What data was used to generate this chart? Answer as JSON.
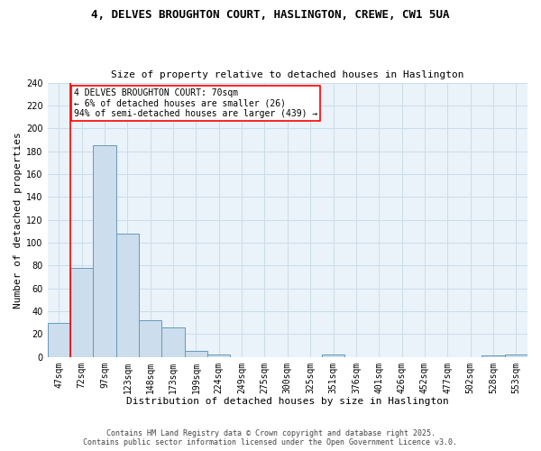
{
  "title1": "4, DELVES BROUGHTON COURT, HASLINGTON, CREWE, CW1 5UA",
  "title2": "Size of property relative to detached houses in Haslington",
  "xlabel": "Distribution of detached houses by size in Haslington",
  "ylabel": "Number of detached properties",
  "bar_color": "#ccdded",
  "bar_edge_color": "#6699bb",
  "categories": [
    "47sqm",
    "72sqm",
    "97sqm",
    "123sqm",
    "148sqm",
    "173sqm",
    "199sqm",
    "224sqm",
    "249sqm",
    "275sqm",
    "300sqm",
    "325sqm",
    "351sqm",
    "376sqm",
    "401sqm",
    "426sqm",
    "452sqm",
    "477sqm",
    "502sqm",
    "528sqm",
    "553sqm"
  ],
  "values": [
    30,
    78,
    185,
    108,
    32,
    26,
    5,
    2,
    0,
    0,
    0,
    0,
    2,
    0,
    0,
    0,
    0,
    0,
    0,
    1,
    2
  ],
  "redline_x": 0.5,
  "annotation_text": "4 DELVES BROUGHTON COURT: 70sqm\n← 6% of detached houses are smaller (26)\n94% of semi-detached houses are larger (439) →",
  "annotation_box_color": "white",
  "annotation_box_edge_color": "red",
  "redline_color": "red",
  "ylim": [
    0,
    240
  ],
  "yticks": [
    0,
    20,
    40,
    60,
    80,
    100,
    120,
    140,
    160,
    180,
    200,
    220,
    240
  ],
  "grid_color": "#ccdde8",
  "background_color": "#eaf2fa",
  "footer_line1": "Contains HM Land Registry data © Crown copyright and database right 2025.",
  "footer_line2": "Contains public sector information licensed under the Open Government Licence v3.0."
}
